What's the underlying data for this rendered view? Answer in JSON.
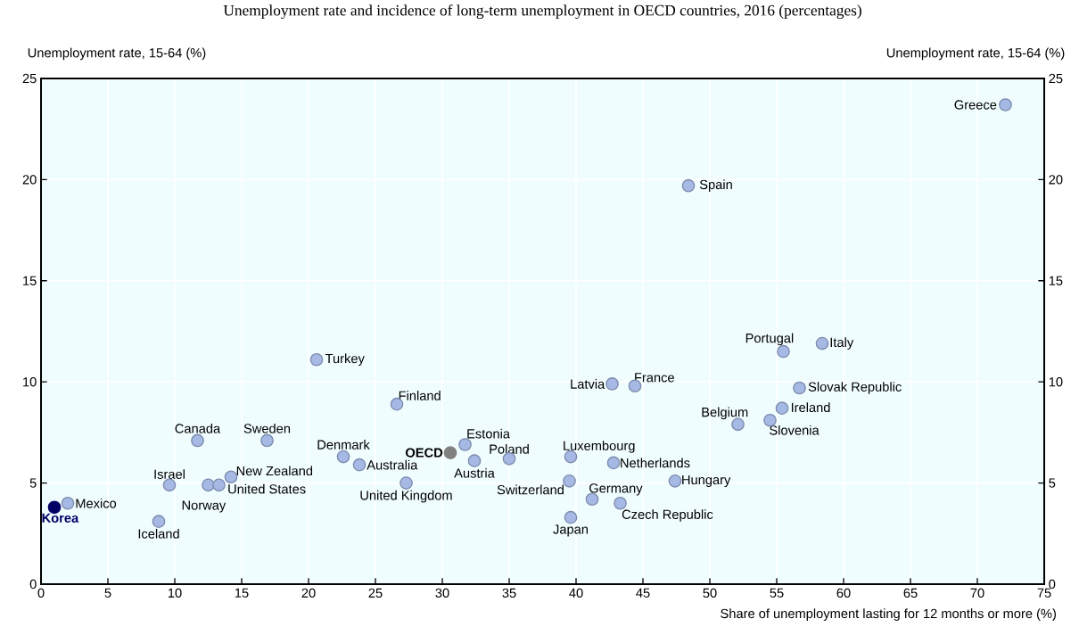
{
  "chart_data": {
    "type": "scatter",
    "title": "Unemployment rate and incidence of long-term unemployment in OECD countries, 2016 (percentages)",
    "xlabel": "Share of unemployment lasting for 12 months or more (%)",
    "ylabel": "Unemployment rate, 15-64 (%)",
    "y2label": "Unemployment rate, 15-64 (%)",
    "xlim": [
      0,
      75
    ],
    "xticks": [
      0,
      5,
      10,
      15,
      20,
      25,
      30,
      35,
      40,
      45,
      50,
      55,
      60,
      65,
      70,
      75
    ],
    "ylim": [
      0,
      25
    ],
    "yticks": [
      0,
      5,
      10,
      15,
      20,
      25
    ],
    "y2lim": [
      0,
      25
    ],
    "y2ticks": [
      0,
      5,
      10,
      15,
      20,
      25
    ],
    "grid": true,
    "marker": "circle",
    "series": [
      {
        "color": "#a6b9e5",
        "x": [
          2.0,
          8.8,
          9.6,
          11.7,
          12.5,
          13.3,
          14.2,
          16.9,
          22.6,
          23.8,
          26.6,
          27.3,
          31.7,
          32.4,
          35.0,
          39.6,
          39.5,
          39.6,
          41.2,
          42.7,
          42.8,
          43.3,
          44.4,
          47.4,
          20.6,
          72.1,
          48.4,
          55.5,
          58.4,
          56.7,
          55.4,
          54.5,
          52.1
        ],
        "values": [
          4.0,
          3.1,
          4.9,
          7.1,
          4.9,
          4.9,
          5.3,
          7.1,
          6.3,
          5.9,
          8.9,
          5.0,
          6.9,
          6.1,
          6.2,
          6.3,
          5.1,
          3.3,
          4.2,
          9.9,
          6.0,
          4.0,
          9.8,
          5.1,
          11.1,
          23.7,
          19.7,
          11.5,
          11.9,
          9.7,
          8.7,
          8.1,
          7.9
        ]
      },
      {
        "name": "OECD",
        "color": "#808080",
        "x": [
          30.6
        ],
        "values": [
          6.5
        ]
      },
      {
        "name": "Korea",
        "color": "#000066",
        "x": [
          1.0
        ],
        "values": [
          3.8
        ]
      }
    ],
    "annotations": [
      {
        "text": "Mexico",
        "x": 2.0,
        "y": 4.0
      },
      {
        "text": "Iceland",
        "x": 8.8,
        "y": 3.1
      },
      {
        "text": "Israel",
        "x": 9.6,
        "y": 4.9
      },
      {
        "text": "Canada",
        "x": 11.7,
        "y": 7.1
      },
      {
        "text": "Norway",
        "x": 12.5,
        "y": 4.9
      },
      {
        "text": "United States",
        "x": 13.3,
        "y": 4.9
      },
      {
        "text": "New Zealand",
        "x": 14.2,
        "y": 5.3
      },
      {
        "text": "Sweden",
        "x": 16.9,
        "y": 7.1
      },
      {
        "text": "Denmark",
        "x": 22.6,
        "y": 6.3
      },
      {
        "text": "Australia",
        "x": 23.8,
        "y": 5.9
      },
      {
        "text": "Finland",
        "x": 26.6,
        "y": 8.9
      },
      {
        "text": "United Kingdom",
        "x": 27.3,
        "y": 5.0
      },
      {
        "text": "Estonia",
        "x": 31.7,
        "y": 6.9
      },
      {
        "text": "Austria",
        "x": 32.4,
        "y": 6.1
      },
      {
        "text": "Poland",
        "x": 35.0,
        "y": 6.2
      },
      {
        "text": "Luxembourg",
        "x": 39.6,
        "y": 6.3
      },
      {
        "text": "Switzerland",
        "x": 39.5,
        "y": 5.1
      },
      {
        "text": "Japan",
        "x": 39.6,
        "y": 3.3
      },
      {
        "text": "Germany",
        "x": 41.2,
        "y": 4.2
      },
      {
        "text": "Latvia",
        "x": 42.7,
        "y": 9.9
      },
      {
        "text": "Netherlands",
        "x": 42.8,
        "y": 6.0
      },
      {
        "text": "Czech Republic",
        "x": 43.3,
        "y": 4.0
      },
      {
        "text": "France",
        "x": 44.4,
        "y": 9.8
      },
      {
        "text": "Hungary",
        "x": 47.4,
        "y": 5.1
      },
      {
        "text": "Turkey",
        "x": 20.6,
        "y": 11.1
      },
      {
        "text": "Greece",
        "x": 72.1,
        "y": 23.7
      },
      {
        "text": "Spain",
        "x": 48.4,
        "y": 19.7
      },
      {
        "text": "Portugal",
        "x": 55.5,
        "y": 11.5
      },
      {
        "text": "Italy",
        "x": 58.4,
        "y": 11.9
      },
      {
        "text": "Slovak Republic",
        "x": 56.7,
        "y": 9.7
      },
      {
        "text": "Ireland",
        "x": 55.4,
        "y": 8.7
      },
      {
        "text": "Slovenia",
        "x": 54.5,
        "y": 8.1
      },
      {
        "text": "Belgium",
        "x": 52.1,
        "y": 7.9
      }
    ]
  }
}
